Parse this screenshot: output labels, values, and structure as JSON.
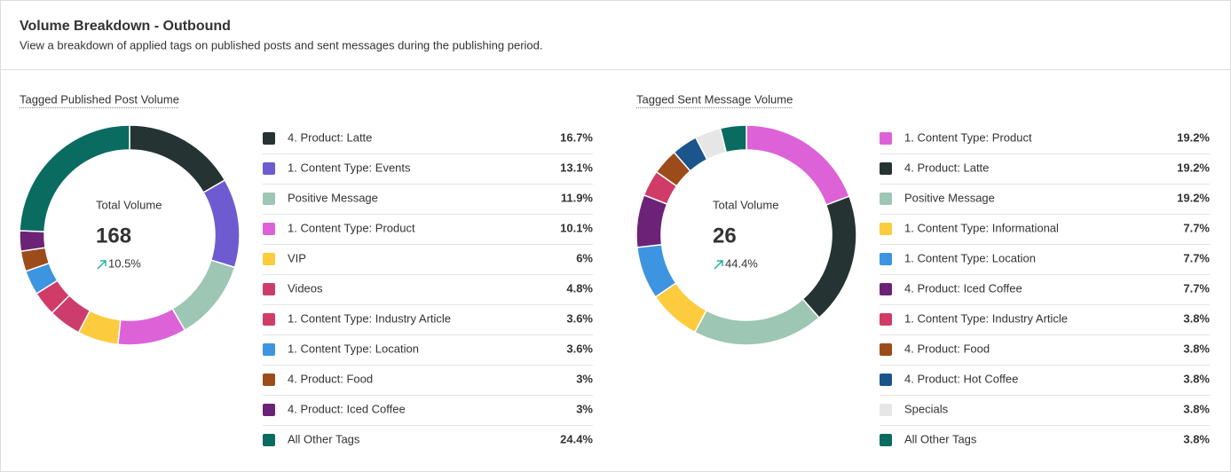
{
  "header": {
    "title": "Volume Breakdown - Outbound",
    "subtitle": "View a breakdown of applied tags on published posts and sent messages during the publishing period."
  },
  "chart_data": [
    {
      "type": "pie",
      "title": "Tagged Published Post Volume",
      "categories": [
        "4. Product: Latte",
        "1. Content Type: Events",
        "Positive Message",
        "1. Content Type: Product",
        "VIP",
        "Videos",
        "1. Content Type: Industry Article",
        "1. Content Type: Location",
        "4. Product: Food",
        "4. Product: Iced Coffee",
        "All Other Tags"
      ],
      "values": [
        16.7,
        13.1,
        11.9,
        10.1,
        6,
        4.8,
        3.6,
        3.6,
        3,
        3,
        24.4
      ],
      "value_labels": [
        "16.7%",
        "13.1%",
        "11.9%",
        "10.1%",
        "6%",
        "4.8%",
        "3.6%",
        "3.6%",
        "3%",
        "3%",
        "24.4%"
      ],
      "colors": [
        "#263333",
        "#6f5bd0",
        "#9dc6b4",
        "#dd62d8",
        "#fdcb3e",
        "#cc3d6e",
        "#d03b67",
        "#3d94e0",
        "#9c4c1a",
        "#6c2377",
        "#0a6b61"
      ],
      "center_label": "Total Volume",
      "total": 168,
      "change": "10.5%"
    },
    {
      "type": "pie",
      "title": "Tagged Sent Message Volume",
      "categories": [
        "1. Content Type: Product",
        "4. Product: Latte",
        "Positive Message",
        "1. Content Type: Informational",
        "1. Content Type: Location",
        "4. Product: Iced Coffee",
        "1. Content Type: Industry Article",
        "4. Product: Food",
        "4. Product: Hot Coffee",
        "Specials",
        "All Other Tags"
      ],
      "values": [
        19.2,
        19.2,
        19.2,
        7.7,
        7.7,
        7.7,
        3.8,
        3.8,
        3.8,
        3.8,
        3.8
      ],
      "value_labels": [
        "19.2%",
        "19.2%",
        "19.2%",
        "7.7%",
        "7.7%",
        "7.7%",
        "3.8%",
        "3.8%",
        "3.8%",
        "3.8%",
        "3.8%"
      ],
      "colors": [
        "#dd62d8",
        "#263333",
        "#9dc6b4",
        "#fdcb3e",
        "#3d94e0",
        "#6c2377",
        "#d03b67",
        "#9c4c1a",
        "#1a568c",
        "#e6e6e6",
        "#0a6b61"
      ],
      "center_label": "Total Volume",
      "total": 26,
      "change": "44.4%"
    }
  ]
}
